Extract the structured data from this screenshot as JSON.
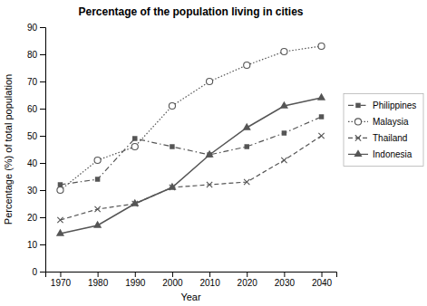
{
  "chart_data": {
    "type": "line",
    "title": "Percentage of the population living in cities",
    "xlabel": "Year",
    "ylabel": "Percentage (%) of total population",
    "x": [
      1970,
      1980,
      1990,
      2000,
      2010,
      2020,
      2030,
      2040
    ],
    "xlim": [
      1966,
      2044
    ],
    "xticks": [
      1970,
      1980,
      1990,
      2000,
      2010,
      2020,
      2030,
      2040
    ],
    "ylim": [
      0,
      90
    ],
    "yticks": [
      0,
      10,
      20,
      30,
      40,
      50,
      60,
      70,
      80,
      90
    ],
    "grid": false,
    "legend": "right",
    "series": [
      {
        "name": "Philippines",
        "color": "#555555",
        "marker": "square",
        "line_style": "dashdot",
        "values": [
          32,
          34,
          49,
          46,
          43,
          46,
          51,
          57
        ]
      },
      {
        "name": "Malaysia",
        "color": "#555555",
        "marker": "open-circle",
        "line_style": "dotted",
        "values": [
          30,
          41,
          46,
          61,
          70,
          76,
          81,
          83
        ]
      },
      {
        "name": "Thailand",
        "color": "#555555",
        "marker": "x",
        "line_style": "dashed",
        "values": [
          19,
          23,
          25,
          31,
          32,
          33,
          41,
          50
        ]
      },
      {
        "name": "Indonesia",
        "color": "#555555",
        "marker": "triangle",
        "line_style": "solid",
        "values": [
          14,
          17,
          25,
          31,
          43,
          53,
          61,
          64
        ]
      }
    ]
  }
}
